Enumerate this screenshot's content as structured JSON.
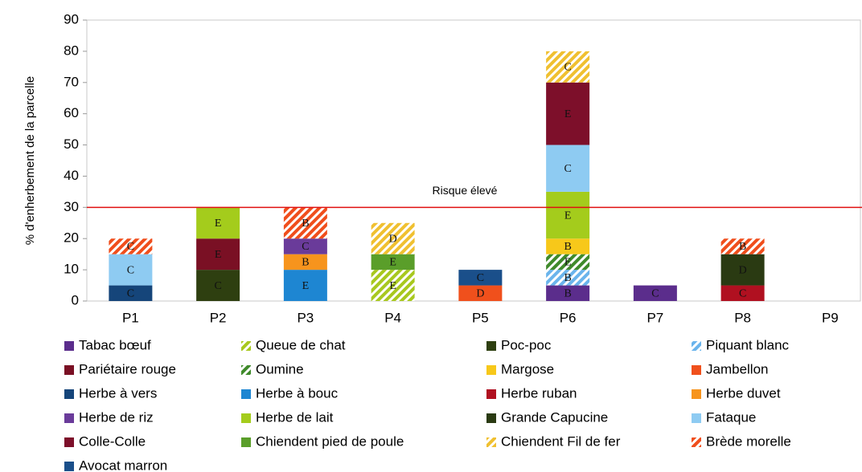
{
  "chart_data": {
    "type": "stacked_bar",
    "y_label": "% d'enherbement de la parcelle",
    "categories": [
      "P1",
      "P2",
      "P3",
      "P4",
      "P5",
      "P6",
      "P7",
      "P8",
      "P9"
    ],
    "ylim": [
      0,
      90
    ],
    "yticks": [
      0,
      10,
      20,
      30,
      40,
      50,
      60,
      70,
      80,
      90
    ],
    "threshold": {
      "value": 30,
      "label": "Risque élevé",
      "color": "#e01010"
    },
    "series": [
      {
        "name": "Tabac bœuf",
        "color": "#5b2d8c",
        "hatched": false,
        "values": [
          null,
          null,
          null,
          null,
          null,
          5,
          5,
          null,
          null
        ],
        "labels": [
          null,
          null,
          null,
          null,
          null,
          "B",
          "C",
          null,
          null
        ]
      },
      {
        "name": "Queue de chat",
        "color": "#a8c81e",
        "hatched": true,
        "values": [
          null,
          null,
          null,
          10,
          null,
          null,
          null,
          null,
          null
        ],
        "labels": [
          null,
          null,
          null,
          "E",
          null,
          null,
          null,
          null,
          null
        ]
      },
      {
        "name": "Poc-poc",
        "color": "#2e3f10",
        "hatched": false,
        "values": [
          null,
          10,
          null,
          null,
          null,
          null,
          null,
          null,
          null
        ],
        "labels": [
          null,
          "C",
          null,
          null,
          null,
          null,
          null,
          null,
          null
        ]
      },
      {
        "name": "Piquant blanc",
        "color": "#6ab4ec",
        "hatched": true,
        "values": [
          null,
          null,
          null,
          null,
          null,
          5,
          null,
          null,
          null
        ],
        "labels": [
          null,
          null,
          null,
          null,
          null,
          "B",
          null,
          null,
          null
        ]
      },
      {
        "name": "Pariétaire rouge",
        "color": "#7a1024",
        "hatched": false,
        "values": [
          null,
          10,
          null,
          null,
          null,
          null,
          null,
          null,
          null
        ],
        "labels": [
          null,
          "E",
          null,
          null,
          null,
          null,
          null,
          null,
          null
        ]
      },
      {
        "name": "Oumine",
        "color": "#3f8a2a",
        "hatched": true,
        "values": [
          null,
          null,
          null,
          null,
          null,
          5,
          null,
          null,
          null
        ],
        "labels": [
          null,
          null,
          null,
          null,
          null,
          "E",
          null,
          null,
          null
        ]
      },
      {
        "name": "Margose",
        "color": "#f7c81a",
        "hatched": false,
        "values": [
          null,
          null,
          null,
          null,
          null,
          5,
          null,
          null,
          null
        ],
        "labels": [
          null,
          null,
          null,
          null,
          null,
          "B",
          null,
          null,
          null
        ]
      },
      {
        "name": "Jambellon",
        "color": "#f0501c",
        "hatched": false,
        "values": [
          null,
          null,
          null,
          null,
          5,
          null,
          null,
          null,
          null
        ],
        "labels": [
          null,
          null,
          null,
          null,
          "D",
          null,
          null,
          null,
          null
        ]
      },
      {
        "name": "Herbe à vers",
        "color": "#15457a",
        "hatched": false,
        "values": [
          5,
          null,
          null,
          null,
          null,
          null,
          null,
          null,
          null
        ],
        "labels": [
          "C",
          null,
          null,
          null,
          null,
          null,
          null,
          null,
          null
        ]
      },
      {
        "name": "Herbe à bouc",
        "color": "#1e86d2",
        "hatched": false,
        "values": [
          null,
          null,
          10,
          null,
          null,
          null,
          null,
          null,
          null
        ],
        "labels": [
          null,
          null,
          "E",
          null,
          null,
          null,
          null,
          null,
          null
        ]
      },
      {
        "name": "Herbe ruban",
        "color": "#b01020",
        "hatched": false,
        "values": [
          null,
          null,
          null,
          null,
          null,
          null,
          null,
          5,
          null
        ],
        "labels": [
          null,
          null,
          null,
          null,
          null,
          null,
          null,
          "C",
          null
        ]
      },
      {
        "name": "Herbe duvet",
        "color": "#f7941d",
        "hatched": false,
        "values": [
          null,
          null,
          5,
          null,
          null,
          null,
          null,
          null,
          null
        ],
        "labels": [
          null,
          null,
          "B",
          null,
          null,
          null,
          null,
          null,
          null
        ]
      },
      {
        "name": "Herbe de riz",
        "color": "#6a3b9a",
        "hatched": false,
        "values": [
          null,
          null,
          5,
          null,
          null,
          null,
          null,
          null,
          null
        ],
        "labels": [
          null,
          null,
          "C",
          null,
          null,
          null,
          null,
          null,
          null
        ]
      },
      {
        "name": "Herbe de lait",
        "color": "#a4cc1c",
        "hatched": false,
        "values": [
          null,
          10,
          null,
          null,
          null,
          15,
          null,
          null,
          null
        ],
        "labels": [
          null,
          "E",
          null,
          null,
          null,
          "E",
          null,
          null,
          null
        ]
      },
      {
        "name": "Grande Capucine",
        "color": "#2a3a12",
        "hatched": false,
        "values": [
          null,
          null,
          null,
          null,
          null,
          null,
          null,
          10,
          null
        ],
        "labels": [
          null,
          null,
          null,
          null,
          null,
          null,
          null,
          "D",
          null
        ]
      },
      {
        "name": "Fataque",
        "color": "#8ecbf2",
        "hatched": false,
        "values": [
          10,
          null,
          null,
          null,
          null,
          15,
          null,
          null,
          null
        ],
        "labels": [
          "C",
          null,
          null,
          null,
          null,
          "C",
          null,
          null,
          null
        ]
      },
      {
        "name": "Colle-Colle",
        "color": "#7d0f2a",
        "hatched": false,
        "values": [
          null,
          null,
          null,
          null,
          null,
          20,
          null,
          null,
          null
        ],
        "labels": [
          null,
          null,
          null,
          null,
          null,
          "E",
          null,
          null,
          null
        ]
      },
      {
        "name": "Chiendent pied de poule",
        "color": "#5a9e2a",
        "hatched": false,
        "values": [
          null,
          null,
          null,
          5,
          null,
          null,
          null,
          null,
          null
        ],
        "labels": [
          null,
          null,
          null,
          "E",
          null,
          null,
          null,
          null,
          null
        ]
      },
      {
        "name": "Chiendent Fil de fer",
        "color": "#f0c030",
        "hatched": true,
        "values": [
          null,
          null,
          null,
          10,
          null,
          10,
          null,
          null,
          null
        ],
        "labels": [
          null,
          null,
          null,
          "D",
          null,
          "C",
          null,
          null,
          null
        ]
      },
      {
        "name": "Brède morelle",
        "color": "#f04e1c",
        "hatched": true,
        "values": [
          5,
          null,
          10,
          null,
          null,
          null,
          null,
          5,
          null
        ],
        "labels": [
          "C",
          null,
          "B",
          null,
          null,
          null,
          null,
          "B",
          null
        ]
      },
      {
        "name": "Avocat marron",
        "color": "#1a4f8a",
        "hatched": false,
        "values": [
          null,
          null,
          null,
          null,
          5,
          null,
          null,
          null,
          null
        ],
        "labels": [
          null,
          null,
          null,
          null,
          "C",
          null,
          null,
          null,
          null
        ]
      }
    ]
  }
}
